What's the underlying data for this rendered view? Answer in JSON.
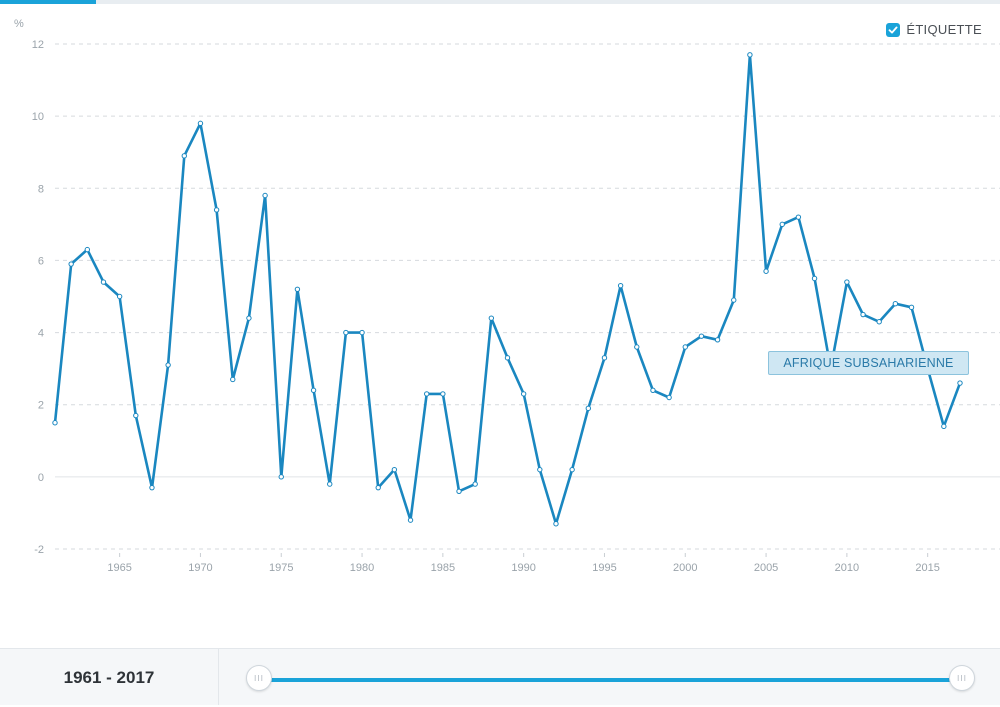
{
  "chart_data": {
    "type": "line",
    "y_unit": "%",
    "x": [
      1961,
      1962,
      1963,
      1964,
      1965,
      1966,
      1967,
      1968,
      1969,
      1970,
      1971,
      1972,
      1973,
      1974,
      1975,
      1976,
      1977,
      1978,
      1979,
      1980,
      1981,
      1982,
      1983,
      1984,
      1985,
      1986,
      1987,
      1988,
      1989,
      1990,
      1991,
      1992,
      1993,
      1994,
      1995,
      1996,
      1997,
      1998,
      1999,
      2000,
      2001,
      2002,
      2003,
      2004,
      2005,
      2006,
      2007,
      2008,
      2009,
      2010,
      2011,
      2012,
      2013,
      2014,
      2015,
      2016,
      2017
    ],
    "series": [
      {
        "name": "AFRIQUE SUBSAHARIENNE",
        "values": [
          1.5,
          5.9,
          6.3,
          5.4,
          5.0,
          1.7,
          -0.3,
          3.1,
          8.9,
          9.8,
          7.4,
          2.7,
          4.4,
          7.8,
          0.0,
          5.2,
          2.4,
          -0.2,
          4.0,
          4.0,
          -0.3,
          0.2,
          -1.2,
          2.3,
          2.3,
          -0.4,
          -0.2,
          4.4,
          3.3,
          2.3,
          0.2,
          -1.3,
          0.2,
          1.9,
          3.3,
          5.3,
          3.6,
          2.4,
          2.2,
          3.6,
          3.9,
          3.8,
          4.9,
          11.7,
          5.7,
          7.0,
          7.2,
          5.5,
          3.0,
          5.4,
          4.5,
          4.3,
          4.8,
          4.7,
          3.0,
          1.4,
          2.6
        ]
      }
    ],
    "x_ticks": [
      1965,
      1970,
      1975,
      1980,
      1985,
      1990,
      1995,
      2000,
      2005,
      2010,
      2015
    ],
    "y_ticks": [
      -2,
      0,
      2,
      4,
      6,
      8,
      10,
      12
    ],
    "xlim": [
      1961,
      2017
    ],
    "ylim": [
      -2,
      12
    ],
    "grid": true,
    "series_color": "#1a87c0"
  },
  "label_toggle": {
    "label": "ÉTIQUETTE",
    "checked": true
  },
  "range": {
    "label": "1961 - 2017",
    "start": 1961,
    "end": 2017
  },
  "colors": {
    "accent": "#1aa3d9",
    "line": "#1a87c0",
    "grid": "#d6dade",
    "text": "#9aa3aa"
  },
  "icons": {
    "checkbox": "check-icon",
    "slider_handle": "grip-icon"
  }
}
